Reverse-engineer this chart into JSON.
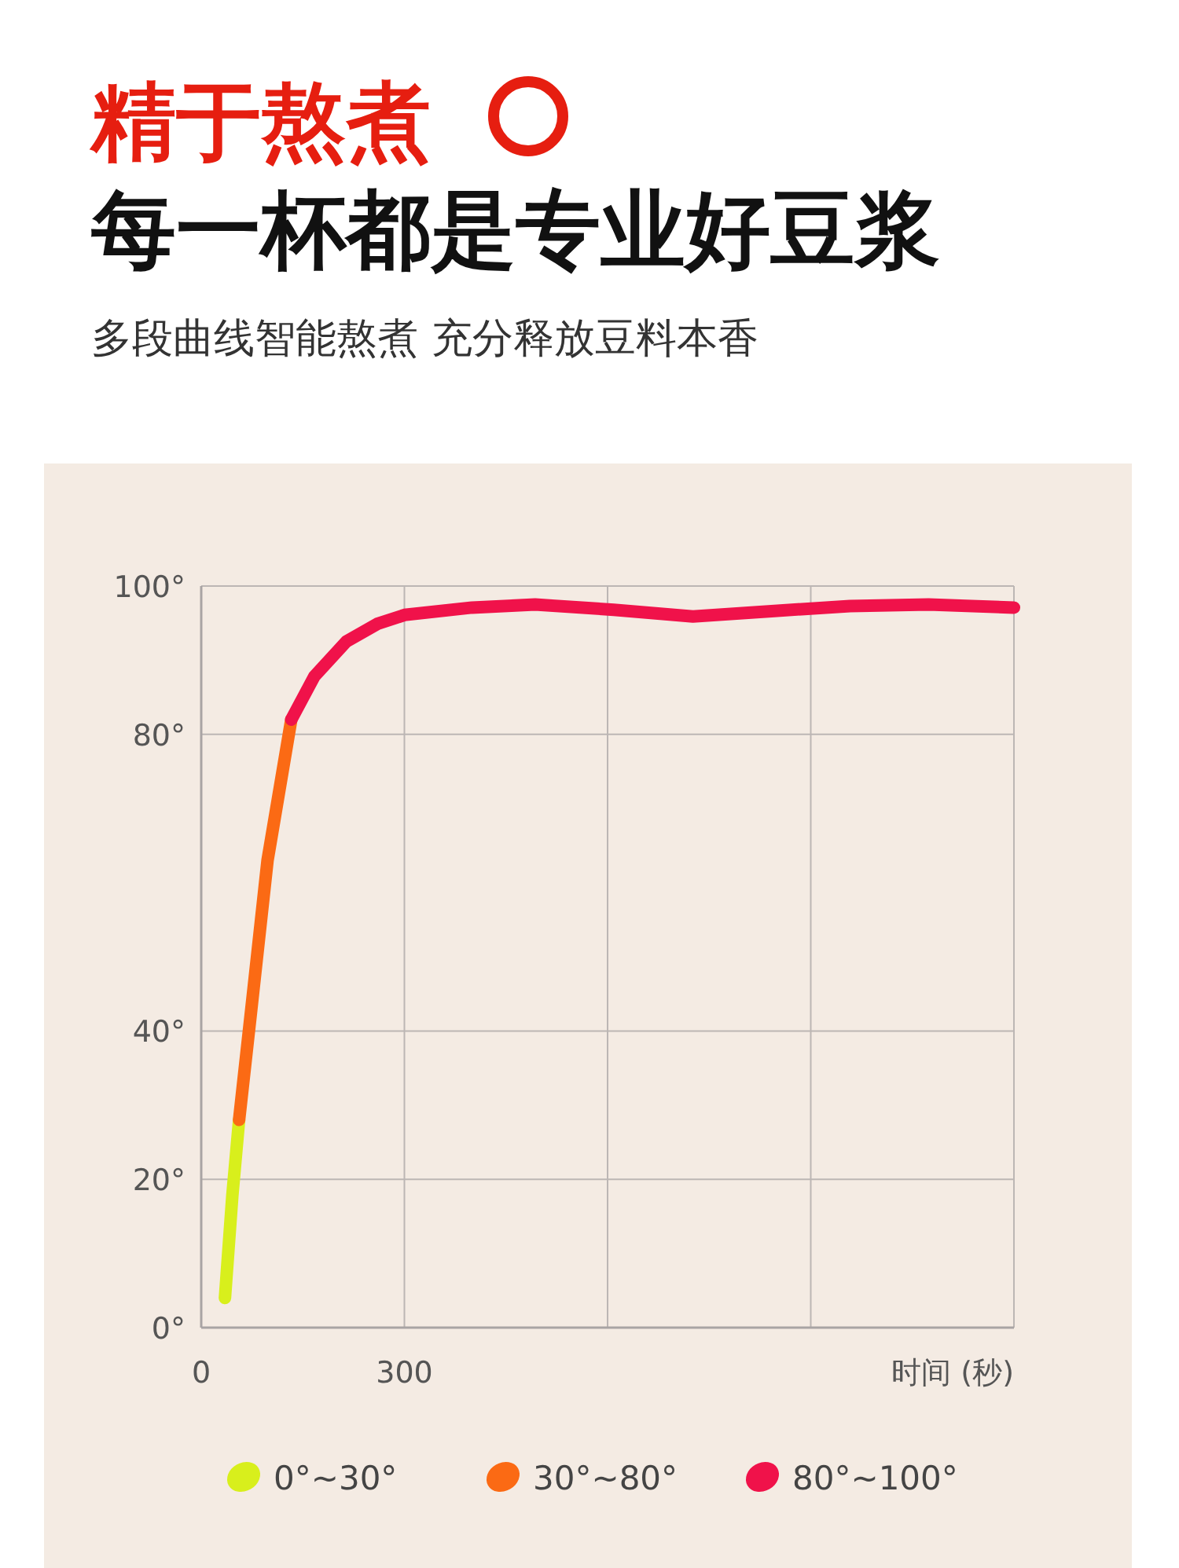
{
  "chart_data": {
    "type": "line",
    "title": "精于熬煮",
    "subtitle": "每一杯都是专业好豆浆",
    "annotations": [
      "多段曲线智能熬煮  充分释放豆料本香"
    ],
    "xlabel": "时间 (秒)",
    "xlim": [
      0,
      1200
    ],
    "xticks": [
      0,
      300,
      {
        "value": 600,
        "label": null
      },
      {
        "value": 900,
        "label": null
      },
      {
        "value": 1200,
        "label": null
      }
    ],
    "ylim": [
      0,
      100
    ],
    "yticks": [
      {
        "value": 0,
        "label": "0°"
      },
      {
        "value": 20,
        "label": "20°"
      },
      {
        "value": 40,
        "label": "40°"
      },
      {
        "value": 80,
        "label": "80°"
      },
      {
        "value": 100,
        "label": "100°"
      }
    ],
    "grid": true,
    "legend": "bottom",
    "line_style": "solid",
    "marker": "none",
    "series": [
      {
        "name": "0°~30°",
        "color": "#d8ef1c",
        "x": [
          35,
          46,
          56
        ],
        "values": [
          4,
          17.8,
          28
        ]
      },
      {
        "name": "30°~80°",
        "color": "#fb6a14",
        "x": [
          56,
          74,
          98,
          133
        ],
        "values": [
          28,
          43,
          63,
          82
        ]
      },
      {
        "name": "80°~100°",
        "color": "#f0124a",
        "x": [
          133,
          167,
          214,
          260,
          300,
          400,
          493,
          609,
          726,
          842,
          958,
          1074,
          1200
        ],
        "values": [
          82,
          87.8,
          92.5,
          94.9,
          96.1,
          97.1,
          97.5,
          96.8,
          95.9,
          96.6,
          97.3,
          97.5,
          97.1
        ]
      }
    ]
  }
}
